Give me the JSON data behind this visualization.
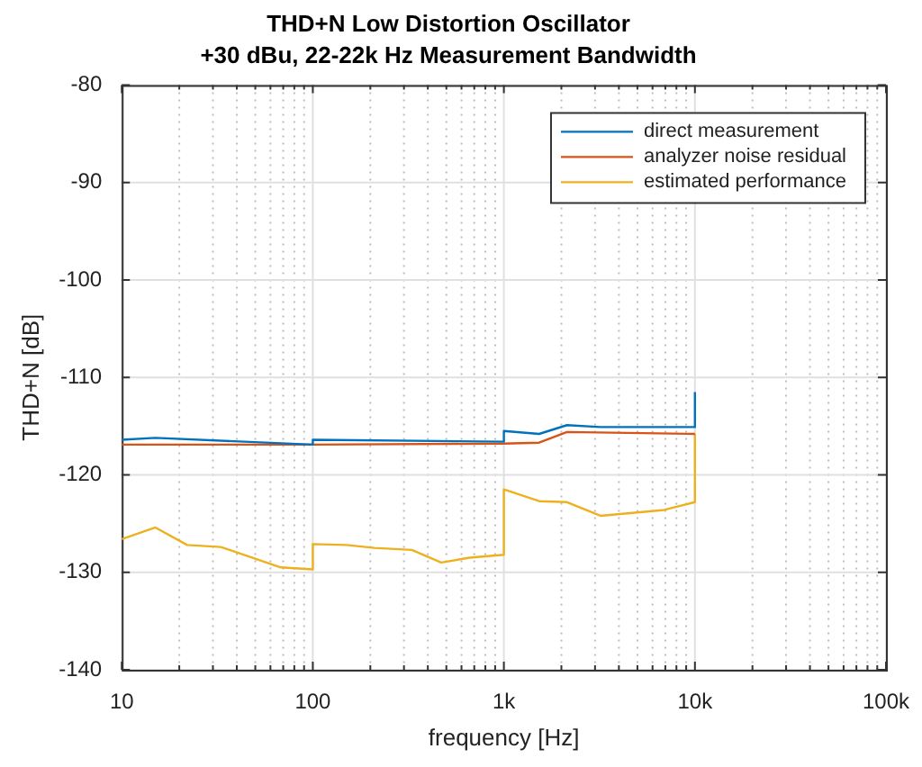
{
  "chart_data": {
    "type": "line",
    "title": "THD+N Low Distortion Oscillator",
    "subtitle": "+30 dBu, 22-22k Hz Measurement Bandwidth",
    "xlabel": "frequency [Hz]",
    "ylabel": "THD+N [dB]",
    "log": "x",
    "grid": true,
    "legend": "top right",
    "marker": "none",
    "line_style": "solid",
    "xlim": [
      10,
      100000
    ],
    "ylim": [
      -140,
      -80
    ],
    "xticks": [
      {
        "value": 10,
        "label": "10"
      },
      {
        "value": 20,
        "label": null
      },
      {
        "value": 30,
        "label": null
      },
      {
        "value": 40,
        "label": null
      },
      {
        "value": 50,
        "label": null
      },
      {
        "value": 60,
        "label": null
      },
      {
        "value": 70,
        "label": null
      },
      {
        "value": 80,
        "label": null
      },
      {
        "value": 90,
        "label": null
      },
      {
        "value": 100,
        "label": "100"
      },
      {
        "value": 200,
        "label": null
      },
      {
        "value": 300,
        "label": null
      },
      {
        "value": 400,
        "label": null
      },
      {
        "value": 500,
        "label": null
      },
      {
        "value": 600,
        "label": null
      },
      {
        "value": 700,
        "label": null
      },
      {
        "value": 800,
        "label": null
      },
      {
        "value": 900,
        "label": null
      },
      {
        "value": 1000,
        "label": "1k"
      },
      {
        "value": 2000,
        "label": null
      },
      {
        "value": 3000,
        "label": null
      },
      {
        "value": 4000,
        "label": null
      },
      {
        "value": 5000,
        "label": null
      },
      {
        "value": 6000,
        "label": null
      },
      {
        "value": 7000,
        "label": null
      },
      {
        "value": 8000,
        "label": null
      },
      {
        "value": 9000,
        "label": null
      },
      {
        "value": 10000,
        "label": "10k"
      },
      {
        "value": 20000,
        "label": null
      },
      {
        "value": 30000,
        "label": null
      },
      {
        "value": 40000,
        "label": null
      },
      {
        "value": 50000,
        "label": null
      },
      {
        "value": 60000,
        "label": null
      },
      {
        "value": 70000,
        "label": null
      },
      {
        "value": 80000,
        "label": null
      },
      {
        "value": 90000,
        "label": null
      },
      {
        "value": 100000,
        "label": "100k"
      }
    ],
    "yticks": [
      -140,
      -130,
      -120,
      -110,
      -100,
      -90,
      -80
    ],
    "series": [
      {
        "name": "direct measurement",
        "color": "#0072bd",
        "x": [
          10,
          15,
          100,
          100,
          1000,
          1000,
          1530,
          2140,
          3200,
          10000,
          10000
        ],
        "values": [
          -116.4,
          -116.2,
          -116.9,
          -116.4,
          -116.6,
          -115.5,
          -115.8,
          -114.9,
          -115.1,
          -115.1,
          -111.5
        ]
      },
      {
        "name": "analyzer noise residual",
        "color": "#d95319",
        "x": [
          10,
          100,
          1000,
          1530,
          2140,
          10000
        ],
        "values": [
          -116.9,
          -116.9,
          -116.8,
          -116.7,
          -115.6,
          -115.8
        ]
      },
      {
        "name": "estimated performance",
        "color": "#edb120",
        "x": [
          10,
          15,
          22,
          33,
          68,
          100,
          100,
          150,
          210,
          330,
          470,
          660,
          1000,
          1000,
          1530,
          2140,
          3200,
          6900,
          10000,
          10000
        ],
        "values": [
          -126.6,
          -125.4,
          -127.2,
          -127.4,
          -129.5,
          -129.7,
          -127.1,
          -127.2,
          -127.5,
          -127.7,
          -129.0,
          -128.5,
          -128.2,
          -121.5,
          -122.7,
          -122.8,
          -124.2,
          -123.6,
          -122.8,
          -115.8
        ]
      }
    ]
  }
}
